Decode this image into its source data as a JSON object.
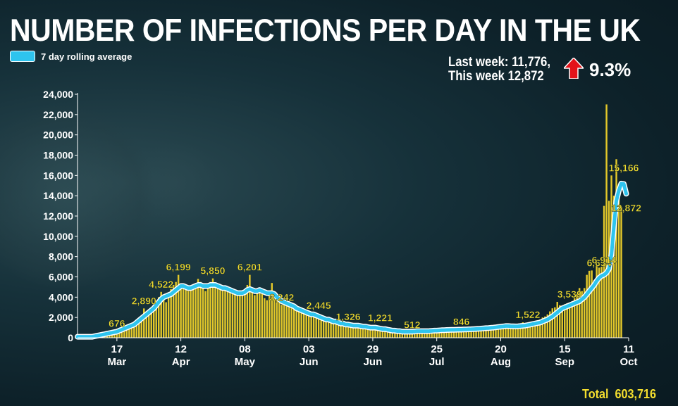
{
  "title": "NUMBER OF INFECTIONS PER DAY IN THE UK",
  "legend": {
    "label": "7 day rolling average"
  },
  "comparison": {
    "line1": "Last week: 11,776,",
    "line2": "This week 12,872",
    "change": "9.3%"
  },
  "total": {
    "label": "Total",
    "value": "603,716"
  },
  "colors": {
    "bars": "#e3c82a",
    "line": "#2ec4ee",
    "labels": "#f5df2e",
    "arrow": "#e3131a",
    "background": "#0d2129"
  },
  "icons": {
    "change_icon": "up-arrow-icon"
  },
  "chart_data": {
    "type": "bar",
    "title": "NUMBER OF INFECTIONS PER DAY IN THE UK",
    "ylim": [
      0,
      24000
    ],
    "yticks": [
      0,
      2000,
      4000,
      6000,
      8000,
      10000,
      12000,
      14000,
      16000,
      18000,
      20000,
      22000,
      24000
    ],
    "ytick_labels": [
      "0",
      "2,000",
      "4,000",
      "6,000",
      "8,000",
      "10,000",
      "12,000",
      "14,000",
      "16,000",
      "18,000",
      "20,000",
      "22,000",
      "24,000"
    ],
    "x_start": "2020-03-01",
    "x_end": "2020-10-11",
    "xticks": [
      {
        "date": "2020-03-17",
        "day": "17",
        "month": "Mar"
      },
      {
        "date": "2020-04-12",
        "day": "12",
        "month": "Apr"
      },
      {
        "date": "2020-05-08",
        "day": "08",
        "month": "May"
      },
      {
        "date": "2020-06-03",
        "day": "03",
        "month": "Jun"
      },
      {
        "date": "2020-06-29",
        "day": "29",
        "month": "Jun"
      },
      {
        "date": "2020-07-25",
        "day": "25",
        "month": "Jul"
      },
      {
        "date": "2020-08-20",
        "day": "20",
        "month": "Aug"
      },
      {
        "date": "2020-09-15",
        "day": "15",
        "month": "Sep"
      },
      {
        "date": "2020-10-11",
        "day": "11",
        "month": "Oct"
      }
    ],
    "daily_series_start": "2020-03-01",
    "daily_cases": [
      40,
      20,
      40,
      60,
      60,
      50,
      70,
      80,
      120,
      150,
      160,
      200,
      300,
      320,
      350,
      400,
      676,
      650,
      700,
      1000,
      1050,
      1100,
      1200,
      1300,
      1500,
      1800,
      2100,
      2890,
      2500,
      2700,
      3000,
      3300,
      3600,
      4000,
      4522,
      3900,
      3500,
      4000,
      4800,
      5200,
      5500,
      6199,
      5300,
      5000,
      4800,
      4600,
      4700,
      5000,
      5400,
      5800,
      5500,
      4900,
      4600,
      5100,
      5500,
      5850,
      5300,
      4900,
      4800,
      5000,
      5100,
      4800,
      4700,
      4600,
      4500,
      4300,
      4200,
      4400,
      4700,
      5200,
      6201,
      4500,
      4200,
      4400,
      4600,
      4300,
      3900,
      3700,
      4300,
      5400,
      4200,
      4000,
      3800,
      3242,
      3500,
      3300,
      3200,
      3100,
      3000,
      2900,
      2700,
      2600,
      2800,
      2500,
      2400,
      2300,
      2300,
      2445,
      2200,
      2000,
      1900,
      1800,
      1700,
      1900,
      1800,
      1600,
      1500,
      1326,
      1400,
      1300,
      1200,
      1200,
      1300,
      1300,
      1200,
      1100,
      1100,
      1000,
      1100,
      1000,
      1000,
      1221,
      1000,
      900,
      800,
      900,
      800,
      800,
      700,
      600,
      700,
      600,
      600,
      550,
      512,
      600,
      500,
      550,
      600,
      700,
      650,
      600,
      700,
      650,
      600,
      750,
      700,
      650,
      700,
      846,
      750,
      700,
      750,
      800,
      750,
      800,
      700,
      800,
      850,
      900,
      900,
      850,
      800,
      900,
      950,
      900,
      900,
      1000,
      1100,
      1000,
      1100,
      1200,
      1100,
      1000,
      1100,
      1200,
      1300,
      1200,
      1100,
      1200,
      1300,
      1522,
      1200,
      1300,
      1400,
      1500,
      1600,
      1700,
      1800,
      2000,
      2100,
      2300,
      2600,
      2900,
      3000,
      3539,
      3200,
      3100,
      3300,
      3400,
      3200,
      3500,
      3900,
      4300,
      4900,
      4600,
      4900,
      6200,
      6600,
      6634,
      5700,
      7100,
      6914,
      7000,
      13000,
      23000,
      13500,
      16000,
      14000,
      17600,
      15166,
      12872
    ],
    "rolling_average": [
      100,
      100,
      100,
      100,
      100,
      100,
      100,
      150,
      200,
      250,
      300,
      350,
      400,
      450,
      500,
      550,
      600,
      700,
      800,
      900,
      1000,
      1100,
      1200,
      1300,
      1500,
      1700,
      1900,
      2100,
      2300,
      2500,
      2700,
      2900,
      3200,
      3500,
      3800,
      4000,
      4100,
      4200,
      4300,
      4500,
      4700,
      4900,
      5100,
      5100,
      5000,
      4900,
      4900,
      5000,
      5100,
      5200,
      5200,
      5100,
      5100,
      5100,
      5200,
      5200,
      5200,
      5100,
      5000,
      4900,
      4900,
      4800,
      4700,
      4600,
      4500,
      4400,
      4400,
      4400,
      4500,
      4700,
      4800,
      4700,
      4600,
      4600,
      4700,
      4600,
      4500,
      4400,
      4400,
      4400,
      4300,
      4000,
      3800,
      3600,
      3500,
      3400,
      3300,
      3200,
      3100,
      2900,
      2800,
      2700,
      2600,
      2500,
      2400,
      2300,
      2300,
      2200,
      2100,
      2000,
      1900,
      1800,
      1800,
      1700,
      1600,
      1600,
      1500,
      1400,
      1400,
      1300,
      1300,
      1250,
      1200,
      1200,
      1200,
      1150,
      1100,
      1100,
      1050,
      1000,
      1000,
      1000,
      950,
      900,
      850,
      850,
      800,
      750,
      700,
      700,
      650,
      650,
      600,
      600,
      600,
      600,
      600,
      620,
      650,
      650,
      650,
      650,
      650,
      660,
      680,
      700,
      700,
      720,
      740,
      750,
      760,
      770,
      780,
      780,
      790,
      800,
      800,
      810,
      820,
      830,
      840,
      850,
      870,
      880,
      900,
      920,
      940,
      960,
      980,
      1000,
      1030,
      1060,
      1090,
      1120,
      1150,
      1150,
      1140,
      1130,
      1120,
      1130,
      1150,
      1180,
      1200,
      1250,
      1300,
      1350,
      1400,
      1450,
      1500,
      1600,
      1700,
      1800,
      1950,
      2100,
      2300,
      2500,
      2700,
      2900,
      3000,
      3100,
      3200,
      3300,
      3400,
      3500,
      3600,
      3800,
      4000,
      4300,
      4600,
      4900,
      5200,
      5600,
      5900,
      6100,
      6200,
      6400,
      6800,
      8200,
      11000,
      13500,
      14500,
      15200,
      15166,
      14200
    ],
    "annotations": [
      {
        "date": "2020-03-17",
        "value": 676,
        "label": "676"
      },
      {
        "date": "2020-03-28",
        "value": 2890,
        "label": "2,890"
      },
      {
        "date": "2020-04-04",
        "value": 4522,
        "label": "4,522"
      },
      {
        "date": "2020-04-11",
        "value": 6199,
        "label": "6,199"
      },
      {
        "date": "2020-04-25",
        "value": 5850,
        "label": "5,850"
      },
      {
        "date": "2020-05-10",
        "value": 6201,
        "label": "6,201"
      },
      {
        "date": "2020-05-23",
        "value": 3242,
        "label": "3,242"
      },
      {
        "date": "2020-06-07",
        "value": 2445,
        "label": "2,445"
      },
      {
        "date": "2020-06-19",
        "value": 1326,
        "label": "1,326"
      },
      {
        "date": "2020-07-02",
        "value": 1221,
        "label": "1,221"
      },
      {
        "date": "2020-07-15",
        "value": 512,
        "label": "512"
      },
      {
        "date": "2020-08-04",
        "value": 846,
        "label": "846"
      },
      {
        "date": "2020-08-31",
        "value": 1522,
        "label": "1,522"
      },
      {
        "date": "2020-09-17",
        "value": 3539,
        "label": "3,539"
      },
      {
        "date": "2020-09-29",
        "value": 6634,
        "label": "6,634"
      },
      {
        "date": "2020-10-01",
        "value": 6914,
        "label": "6,914"
      },
      {
        "date": "2020-10-09",
        "value": 15166,
        "label": "15,166"
      },
      {
        "date": "2020-10-10",
        "value": 12872,
        "label": "12,872"
      }
    ]
  }
}
